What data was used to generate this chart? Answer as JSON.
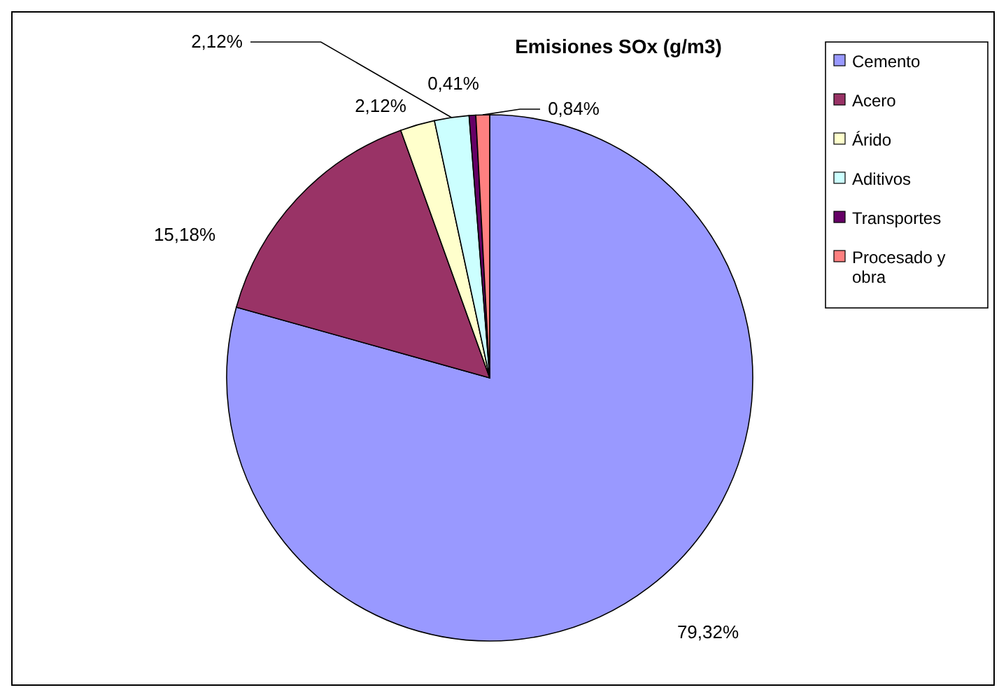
{
  "chart_data": {
    "type": "pie",
    "title": "Emisiones SOx (g/m3)",
    "categories": [
      "Cemento",
      "Acero",
      "Árido",
      "Aditivos",
      "Transportes",
      "Procesado y obra"
    ],
    "values": [
      79.32,
      15.18,
      2.12,
      2.12,
      0.41,
      0.84
    ],
    "value_labels": [
      "79,32%",
      "15,18%",
      "2,12%",
      "2,12%",
      "0,41%",
      "0,84%"
    ],
    "colors": [
      "#9999ff",
      "#993366",
      "#ffffcc",
      "#ccffff",
      "#660066",
      "#ff8080"
    ],
    "legend": "right"
  }
}
